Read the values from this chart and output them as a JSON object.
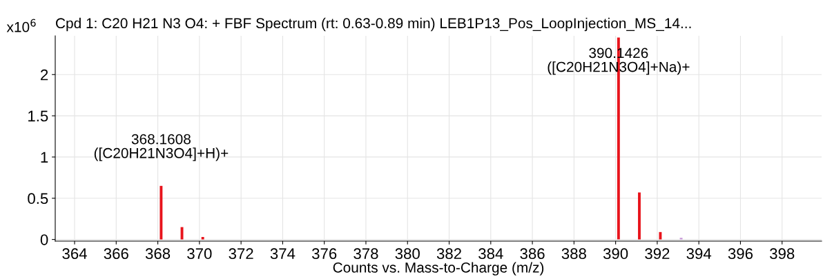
{
  "chart_data": {
    "type": "bar",
    "title": "Cpd 1: C20 H21 N3 O4: + FBF Spectrum (rt: 0.63-0.89 min) LEB1P13_Pos_LoopInjection_MS_14...",
    "ylabel": "x10$^{6}$",
    "xlabel": "Counts vs. Mass-to-Charge (m/z)",
    "x": [
      368.16,
      369.16,
      370.16,
      390.14,
      391.14,
      392.15,
      393.15
    ],
    "values": [
      0.65,
      0.15,
      0.03,
      2.45,
      0.57,
      0.09,
      0.02
    ],
    "colors": [
      "#e8141c",
      "#e8141c",
      "#e8141c",
      "#e8141c",
      "#e8141c",
      "#e8141c",
      "#c89ad8"
    ],
    "xlim": [
      363.07,
      399.9
    ],
    "ylim": [
      -0.02,
      2.47
    ],
    "xticks": [
      364,
      366,
      368,
      370,
      372,
      374,
      376,
      378,
      380,
      382,
      384,
      386,
      388,
      390,
      392,
      394,
      396,
      398
    ],
    "yticks": [
      0,
      0.5,
      1,
      1.5,
      2
    ],
    "grid": true,
    "annotations": [
      {
        "text": "368.1608\n([C20H21N3O4]+H)+",
        "x": 368.16,
        "y": 0.65
      },
      {
        "text": "390.1426\n([C20H21N3O4]+Na)+",
        "x": 390.14,
        "y": 2.45
      }
    ]
  }
}
